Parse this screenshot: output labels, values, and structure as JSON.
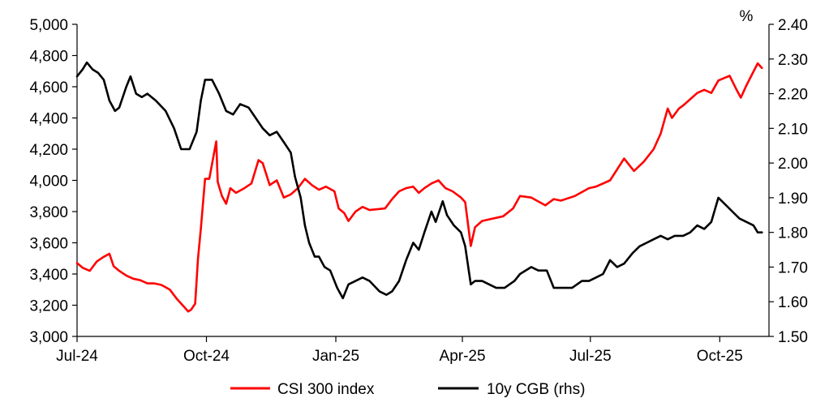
{
  "chart_data": {
    "type": "line",
    "title": "",
    "x_ticks": [
      "Jul-24",
      "Oct-24",
      "Jan-25",
      "Apr-25",
      "Jul-25",
      "Oct-25"
    ],
    "y_left": {
      "min": 3000,
      "max": 5000,
      "ticks": [
        "3,000",
        "3,200",
        "3,400",
        "3,600",
        "3,800",
        "4,000",
        "4,200",
        "4,400",
        "4,600",
        "4,800",
        "5,000"
      ]
    },
    "y_right": {
      "label": "%",
      "min": 1.5,
      "max": 2.4,
      "ticks": [
        "1.50",
        "1.60",
        "1.70",
        "1.80",
        "1.90",
        "2.00",
        "2.10",
        "2.20",
        "2.30",
        "2.40"
      ]
    },
    "legend_position": "bottom",
    "grid": false,
    "series": [
      {
        "name": "CSI 300 index",
        "axis": "left",
        "color": "#ff0000",
        "points": [
          [
            "2024-07-01",
            3470
          ],
          [
            "2024-07-05",
            3440
          ],
          [
            "2024-07-10",
            3420
          ],
          [
            "2024-07-15",
            3480
          ],
          [
            "2024-07-20",
            3510
          ],
          [
            "2024-07-24",
            3530
          ],
          [
            "2024-07-27",
            3450
          ],
          [
            "2024-07-31",
            3420
          ],
          [
            "2024-08-05",
            3390
          ],
          [
            "2024-08-10",
            3370
          ],
          [
            "2024-08-15",
            3360
          ],
          [
            "2024-08-20",
            3340
          ],
          [
            "2024-08-25",
            3340
          ],
          [
            "2024-08-30",
            3330
          ],
          [
            "2024-09-05",
            3300
          ],
          [
            "2024-09-10",
            3240
          ],
          [
            "2024-09-15",
            3190
          ],
          [
            "2024-09-18",
            3160
          ],
          [
            "2024-09-20",
            3170
          ],
          [
            "2024-09-23",
            3210
          ],
          [
            "2024-09-25",
            3500
          ],
          [
            "2024-09-27",
            3690
          ],
          [
            "2024-09-30",
            4010
          ],
          [
            "2024-10-03",
            4010
          ],
          [
            "2024-10-08",
            4250
          ],
          [
            "2024-10-09",
            3990
          ],
          [
            "2024-10-12",
            3900
          ],
          [
            "2024-10-15",
            3850
          ],
          [
            "2024-10-18",
            3950
          ],
          [
            "2024-10-22",
            3920
          ],
          [
            "2024-10-28",
            3950
          ],
          [
            "2024-11-02",
            3980
          ],
          [
            "2024-11-07",
            4130
          ],
          [
            "2024-11-10",
            4110
          ],
          [
            "2024-11-15",
            3970
          ],
          [
            "2024-11-20",
            4000
          ],
          [
            "2024-11-25",
            3890
          ],
          [
            "2024-11-30",
            3910
          ],
          [
            "2024-12-05",
            3950
          ],
          [
            "2024-12-10",
            4010
          ],
          [
            "2024-12-15",
            3970
          ],
          [
            "2024-12-20",
            3940
          ],
          [
            "2024-12-25",
            3960
          ],
          [
            "2024-12-31",
            3930
          ],
          [
            "2025-01-03",
            3820
          ],
          [
            "2025-01-07",
            3790
          ],
          [
            "2025-01-10",
            3740
          ],
          [
            "2025-01-15",
            3800
          ],
          [
            "2025-01-20",
            3830
          ],
          [
            "2025-01-25",
            3810
          ],
          [
            "2025-02-05",
            3820
          ],
          [
            "2025-02-10",
            3880
          ],
          [
            "2025-02-15",
            3930
          ],
          [
            "2025-02-20",
            3950
          ],
          [
            "2025-02-25",
            3960
          ],
          [
            "2025-03-01",
            3920
          ],
          [
            "2025-03-05",
            3950
          ],
          [
            "2025-03-10",
            3980
          ],
          [
            "2025-03-15",
            4000
          ],
          [
            "2025-03-20",
            3950
          ],
          [
            "2025-03-25",
            3930
          ],
          [
            "2025-03-31",
            3890
          ],
          [
            "2025-04-03",
            3860
          ],
          [
            "2025-04-07",
            3580
          ],
          [
            "2025-04-10",
            3700
          ],
          [
            "2025-04-15",
            3740
          ],
          [
            "2025-04-20",
            3750
          ],
          [
            "2025-04-30",
            3770
          ],
          [
            "2025-05-07",
            3820
          ],
          [
            "2025-05-12",
            3900
          ],
          [
            "2025-05-20",
            3890
          ],
          [
            "2025-05-30",
            3840
          ],
          [
            "2025-06-05",
            3880
          ],
          [
            "2025-06-10",
            3870
          ],
          [
            "2025-06-20",
            3900
          ],
          [
            "2025-06-30",
            3950
          ],
          [
            "2025-07-05",
            3960
          ],
          [
            "2025-07-15",
            4000
          ],
          [
            "2025-07-25",
            4140
          ],
          [
            "2025-08-01",
            4060
          ],
          [
            "2025-08-08",
            4120
          ],
          [
            "2025-08-15",
            4200
          ],
          [
            "2025-08-20",
            4300
          ],
          [
            "2025-08-25",
            4460
          ],
          [
            "2025-08-28",
            4400
          ],
          [
            "2025-09-02",
            4460
          ],
          [
            "2025-09-05",
            4480
          ],
          [
            "2025-09-10",
            4520
          ],
          [
            "2025-09-15",
            4560
          ],
          [
            "2025-09-20",
            4580
          ],
          [
            "2025-09-25",
            4560
          ],
          [
            "2025-09-30",
            4640
          ],
          [
            "2025-10-08",
            4670
          ],
          [
            "2025-10-13",
            4580
          ],
          [
            "2025-10-16",
            4530
          ],
          [
            "2025-10-20",
            4610
          ],
          [
            "2025-10-24",
            4680
          ],
          [
            "2025-10-28",
            4750
          ],
          [
            "2025-10-31",
            4720
          ]
        ]
      },
      {
        "name": "10y CGB (rhs)",
        "axis": "right",
        "color": "#000000",
        "points": [
          [
            "2024-07-01",
            2.25
          ],
          [
            "2024-07-05",
            2.27
          ],
          [
            "2024-07-08",
            2.29
          ],
          [
            "2024-07-12",
            2.27
          ],
          [
            "2024-07-16",
            2.26
          ],
          [
            "2024-07-20",
            2.24
          ],
          [
            "2024-07-24",
            2.18
          ],
          [
            "2024-07-28",
            2.15
          ],
          [
            "2024-07-31",
            2.16
          ],
          [
            "2024-08-05",
            2.22
          ],
          [
            "2024-08-08",
            2.25
          ],
          [
            "2024-08-12",
            2.2
          ],
          [
            "2024-08-16",
            2.19
          ],
          [
            "2024-08-20",
            2.2
          ],
          [
            "2024-08-26",
            2.18
          ],
          [
            "2024-09-02",
            2.15
          ],
          [
            "2024-09-08",
            2.1
          ],
          [
            "2024-09-13",
            2.04
          ],
          [
            "2024-09-19",
            2.04
          ],
          [
            "2024-09-24",
            2.09
          ],
          [
            "2024-09-27",
            2.18
          ],
          [
            "2024-09-30",
            2.24
          ],
          [
            "2024-10-05",
            2.24
          ],
          [
            "2024-10-10",
            2.2
          ],
          [
            "2024-10-15",
            2.15
          ],
          [
            "2024-10-20",
            2.14
          ],
          [
            "2024-10-25",
            2.17
          ],
          [
            "2024-10-31",
            2.16
          ],
          [
            "2024-11-05",
            2.13
          ],
          [
            "2024-11-10",
            2.1
          ],
          [
            "2024-11-15",
            2.08
          ],
          [
            "2024-11-20",
            2.09
          ],
          [
            "2024-11-25",
            2.06
          ],
          [
            "2024-11-30",
            2.03
          ],
          [
            "2024-12-03",
            1.96
          ],
          [
            "2024-12-07",
            1.9
          ],
          [
            "2024-12-10",
            1.82
          ],
          [
            "2024-12-13",
            1.77
          ],
          [
            "2024-12-17",
            1.73
          ],
          [
            "2024-12-20",
            1.73
          ],
          [
            "2024-12-24",
            1.7
          ],
          [
            "2024-12-28",
            1.69
          ],
          [
            "2025-01-02",
            1.64
          ],
          [
            "2025-01-06",
            1.61
          ],
          [
            "2025-01-10",
            1.65
          ],
          [
            "2025-01-15",
            1.66
          ],
          [
            "2025-01-20",
            1.67
          ],
          [
            "2025-01-25",
            1.66
          ],
          [
            "2025-02-01",
            1.63
          ],
          [
            "2025-02-06",
            1.62
          ],
          [
            "2025-02-10",
            1.63
          ],
          [
            "2025-02-15",
            1.66
          ],
          [
            "2025-02-20",
            1.72
          ],
          [
            "2025-02-25",
            1.77
          ],
          [
            "2025-03-01",
            1.75
          ],
          [
            "2025-03-05",
            1.8
          ],
          [
            "2025-03-10",
            1.86
          ],
          [
            "2025-03-13",
            1.83
          ],
          [
            "2025-03-18",
            1.89
          ],
          [
            "2025-03-21",
            1.85
          ],
          [
            "2025-03-26",
            1.82
          ],
          [
            "2025-03-31",
            1.8
          ],
          [
            "2025-04-03",
            1.76
          ],
          [
            "2025-04-07",
            1.65
          ],
          [
            "2025-04-10",
            1.66
          ],
          [
            "2025-04-15",
            1.66
          ],
          [
            "2025-04-20",
            1.65
          ],
          [
            "2025-04-25",
            1.64
          ],
          [
            "2025-05-01",
            1.64
          ],
          [
            "2025-05-08",
            1.66
          ],
          [
            "2025-05-12",
            1.68
          ],
          [
            "2025-05-20",
            1.7
          ],
          [
            "2025-05-25",
            1.69
          ],
          [
            "2025-05-31",
            1.69
          ],
          [
            "2025-06-05",
            1.64
          ],
          [
            "2025-06-10",
            1.64
          ],
          [
            "2025-06-18",
            1.64
          ],
          [
            "2025-06-25",
            1.66
          ],
          [
            "2025-06-30",
            1.66
          ],
          [
            "2025-07-05",
            1.67
          ],
          [
            "2025-07-10",
            1.68
          ],
          [
            "2025-07-15",
            1.72
          ],
          [
            "2025-07-20",
            1.7
          ],
          [
            "2025-07-25",
            1.71
          ],
          [
            "2025-07-31",
            1.74
          ],
          [
            "2025-08-05",
            1.76
          ],
          [
            "2025-08-10",
            1.77
          ],
          [
            "2025-08-15",
            1.78
          ],
          [
            "2025-08-20",
            1.79
          ],
          [
            "2025-08-25",
            1.78
          ],
          [
            "2025-08-30",
            1.79
          ],
          [
            "2025-09-05",
            1.79
          ],
          [
            "2025-09-10",
            1.8
          ],
          [
            "2025-09-15",
            1.82
          ],
          [
            "2025-09-20",
            1.81
          ],
          [
            "2025-09-25",
            1.83
          ],
          [
            "2025-09-30",
            1.9
          ],
          [
            "2025-10-05",
            1.88
          ],
          [
            "2025-10-10",
            1.86
          ],
          [
            "2025-10-15",
            1.84
          ],
          [
            "2025-10-20",
            1.83
          ],
          [
            "2025-10-25",
            1.82
          ],
          [
            "2025-10-28",
            1.8
          ],
          [
            "2025-10-31",
            1.8
          ]
        ]
      }
    ]
  }
}
